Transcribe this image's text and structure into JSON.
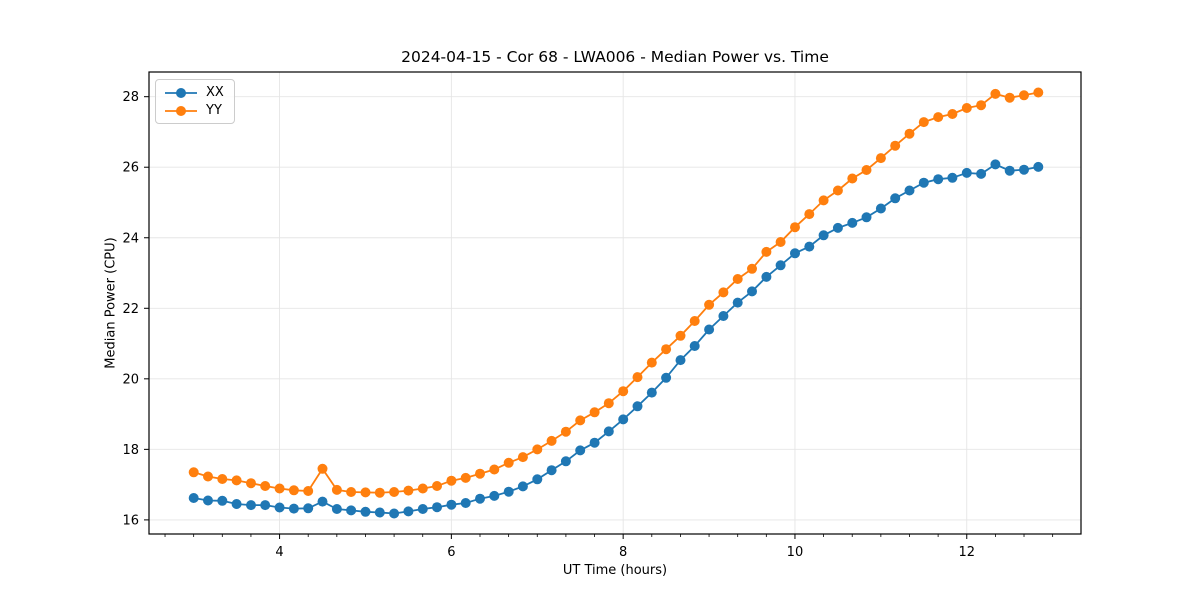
{
  "chart_data": {
    "type": "line",
    "title": "2024-04-15 - Cor 68 - LWA006 - Median Power vs. Time",
    "xlabel": "UT Time (hours)",
    "ylabel": "Median Power (CPU)",
    "xlim": [
      2.48,
      13.33
    ],
    "ylim": [
      15.6,
      28.7
    ],
    "xticks": [
      4,
      6,
      8,
      10,
      12
    ],
    "yticks": [
      16,
      18,
      20,
      22,
      24,
      26,
      28
    ],
    "x_minor_step": 0.33333,
    "grid": true,
    "legend_position": "upper left",
    "marker": "circle",
    "x": [
      3.0,
      3.167,
      3.333,
      3.5,
      3.667,
      3.833,
      4.0,
      4.167,
      4.333,
      4.5,
      4.667,
      4.833,
      5.0,
      5.167,
      5.333,
      5.5,
      5.667,
      5.833,
      6.0,
      6.167,
      6.333,
      6.5,
      6.667,
      6.833,
      7.0,
      7.167,
      7.333,
      7.5,
      7.667,
      7.833,
      8.0,
      8.167,
      8.333,
      8.5,
      8.667,
      8.833,
      9.0,
      9.167,
      9.333,
      9.5,
      9.667,
      9.833,
      10.0,
      10.167,
      10.333,
      10.5,
      10.667,
      10.833,
      11.0,
      11.167,
      11.333,
      11.5,
      11.667,
      11.833,
      12.0,
      12.167,
      12.333,
      12.5,
      12.667,
      12.833
    ],
    "series": [
      {
        "name": "XX",
        "color": "#1f77b4",
        "values": [
          16.62,
          16.55,
          16.54,
          16.45,
          16.42,
          16.42,
          16.35,
          16.32,
          16.33,
          16.52,
          16.31,
          16.27,
          16.23,
          16.21,
          16.18,
          16.24,
          16.31,
          16.36,
          16.43,
          16.48,
          16.6,
          16.68,
          16.8,
          16.95,
          17.15,
          17.41,
          17.66,
          17.97,
          18.19,
          18.51,
          18.85,
          19.22,
          19.61,
          20.03,
          20.53,
          20.93,
          21.4,
          21.78,
          22.16,
          22.48,
          22.89,
          23.22,
          23.56,
          23.75,
          24.07,
          24.28,
          24.42,
          24.58,
          24.83,
          25.12,
          25.34,
          25.56,
          25.66,
          25.7,
          25.84,
          25.81,
          26.08,
          25.9,
          25.93,
          26.01
        ]
      },
      {
        "name": "YY",
        "color": "#ff7f0e",
        "values": [
          17.35,
          17.23,
          17.16,
          17.12,
          17.04,
          16.96,
          16.89,
          16.84,
          16.82,
          17.45,
          16.85,
          16.79,
          16.78,
          16.77,
          16.79,
          16.83,
          16.89,
          16.96,
          17.11,
          17.19,
          17.31,
          17.43,
          17.62,
          17.78,
          18.0,
          18.24,
          18.5,
          18.82,
          19.05,
          19.31,
          19.65,
          20.05,
          20.46,
          20.84,
          21.22,
          21.64,
          22.1,
          22.45,
          22.83,
          23.12,
          23.6,
          23.88,
          24.3,
          24.67,
          25.06,
          25.34,
          25.68,
          25.92,
          26.26,
          26.61,
          26.95,
          27.28,
          27.42,
          27.51,
          27.68,
          27.76,
          28.08,
          27.97,
          28.04,
          28.12
        ]
      }
    ]
  },
  "legend": {
    "items": [
      {
        "label": "XX",
        "color": "#1f77b4"
      },
      {
        "label": "YY",
        "color": "#ff7f0e"
      }
    ]
  },
  "colors": {
    "grid": "#e5e5e5",
    "spine": "#000000",
    "tick": "#000000",
    "text": "#000000",
    "background": "#ffffff"
  }
}
